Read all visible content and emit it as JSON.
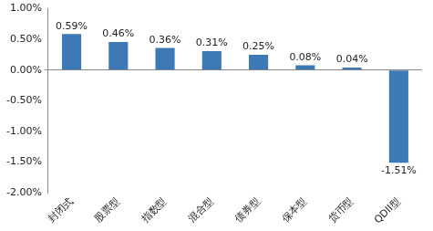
{
  "chart_data": {
    "type": "bar",
    "categories": [
      "封闭式",
      "股票型",
      "指数型",
      "混合型",
      "债券型",
      "保本型",
      "货币型",
      "QDII型"
    ],
    "values": [
      0.59,
      0.46,
      0.36,
      0.31,
      0.25,
      0.08,
      0.04,
      -1.51
    ],
    "value_labels": [
      "0.59%",
      "0.46%",
      "0.36%",
      "0.31%",
      "0.25%",
      "0.08%",
      "0.04%",
      "-1.51%"
    ],
    "color": "#3d7ab5",
    "ylim": [
      -2,
      1
    ],
    "yticks": [
      {
        "value": -2,
        "label": "-2.00%"
      },
      {
        "value": -1.5,
        "label": "-1.50%"
      },
      {
        "value": -1,
        "label": "-1.00%"
      },
      {
        "value": -0.5,
        "label": "-0.50%"
      },
      {
        "value": 0,
        "label": "0.00%"
      },
      {
        "value": 0.5,
        "label": "0.50%"
      },
      {
        "value": 1,
        "label": "1.00%"
      }
    ],
    "grid": false,
    "data_labels": true
  }
}
